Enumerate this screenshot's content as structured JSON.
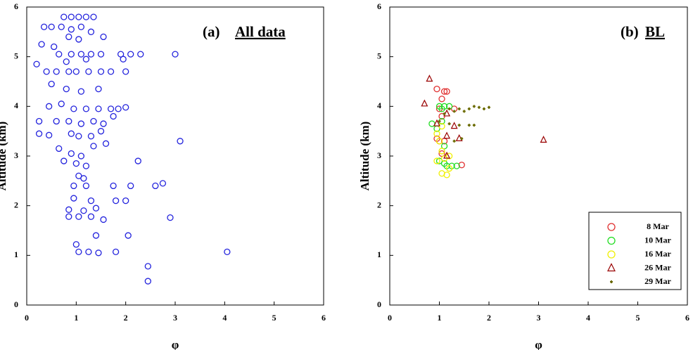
{
  "chart_data": [
    {
      "type": "scatter",
      "label": "(a)",
      "title": "All data",
      "x_label": "φ",
      "y_label": "Altitude (km)",
      "color": "#2222dd",
      "marker": "circle",
      "x": [
        0.75,
        0.9,
        1.05,
        1.2,
        1.35,
        0.35,
        0.5,
        0.7,
        0.9,
        1.1,
        1.3,
        0.85,
        1.05,
        1.55,
        0.3,
        0.55,
        0.65,
        0.9,
        1.1,
        1.3,
        1.5,
        1.9,
        2.1,
        2.3,
        3.0,
        0.2,
        0.8,
        1.2,
        1.95,
        0.4,
        0.6,
        0.85,
        1.0,
        1.25,
        1.5,
        1.7,
        2.0,
        0.5,
        0.8,
        1.1,
        1.45,
        0.45,
        0.7,
        0.95,
        1.2,
        1.45,
        1.7,
        1.85,
        2.0,
        0.25,
        0.6,
        0.85,
        1.1,
        1.35,
        1.55,
        1.75,
        0.25,
        0.45,
        0.9,
        1.05,
        1.3,
        1.5,
        3.1,
        0.65,
        0.9,
        1.1,
        1.35,
        1.6,
        0.75,
        1.0,
        1.2,
        2.25,
        1.05,
        1.15,
        0.95,
        1.2,
        1.75,
        2.1,
        2.6,
        2.75,
        0.95,
        1.3,
        1.8,
        2.0,
        0.85,
        1.15,
        1.4,
        0.85,
        1.05,
        1.3,
        1.55,
        2.9,
        1.4,
        2.05,
        1.0,
        1.05,
        1.25,
        1.45,
        1.8,
        4.05,
        2.45,
        2.45
      ],
      "values": [
        5.8,
        5.8,
        5.8,
        5.8,
        5.8,
        5.6,
        5.6,
        5.6,
        5.55,
        5.6,
        5.5,
        5.4,
        5.35,
        5.4,
        5.25,
        5.2,
        5.05,
        5.05,
        5.05,
        5.05,
        5.05,
        5.05,
        5.05,
        5.05,
        5.05,
        4.85,
        4.9,
        4.95,
        4.95,
        4.7,
        4.7,
        4.7,
        4.7,
        4.7,
        4.7,
        4.7,
        4.7,
        4.45,
        4.35,
        4.3,
        4.35,
        4.0,
        4.05,
        3.95,
        3.95,
        3.95,
        3.95,
        3.95,
        3.98,
        3.7,
        3.7,
        3.7,
        3.65,
        3.7,
        3.65,
        3.8,
        3.45,
        3.42,
        3.45,
        3.4,
        3.4,
        3.5,
        3.3,
        3.15,
        3.05,
        3.0,
        3.2,
        3.25,
        2.9,
        2.85,
        2.8,
        2.9,
        2.6,
        2.55,
        2.4,
        2.4,
        2.4,
        2.4,
        2.4,
        2.45,
        2.15,
        2.1,
        2.1,
        2.1,
        1.92,
        1.9,
        1.95,
        1.78,
        1.78,
        1.78,
        1.72,
        1.76,
        1.4,
        1.4,
        1.22,
        1.07,
        1.07,
        1.05,
        1.07,
        1.07,
        0.78,
        0.48
      ],
      "xlim": [
        0,
        6
      ],
      "ylim": [
        0,
        6
      ],
      "xticks": [
        0,
        1,
        2,
        3,
        4,
        5,
        6
      ],
      "yticks": [
        0,
        1,
        2,
        3,
        4,
        5,
        6
      ]
    },
    {
      "type": "scatter",
      "label": "(b)",
      "title": "BL",
      "x_label": "φ",
      "y_label": "Altitude (km)",
      "series": [
        {
          "name": "8 Mar",
          "color": "#e03030",
          "marker": "circle",
          "x": [
            0.95,
            1.05,
            1.1,
            1.15,
            1.0,
            1.05,
            0.95,
            1.0,
            1.1,
            1.45,
            1.05,
            1.3
          ],
          "values": [
            4.35,
            4.15,
            4.3,
            4.3,
            3.95,
            3.8,
            3.35,
            3.3,
            3.3,
            2.82,
            3.05,
            3.95
          ]
        },
        {
          "name": "10 Mar",
          "color": "#22dd22",
          "marker": "circle",
          "x": [
            0.85,
            1.0,
            1.05,
            1.1,
            1.2,
            0.95,
            1.05,
            1.1,
            1.15,
            1.25,
            1.35,
            1.0,
            1.1
          ],
          "values": [
            3.65,
            4.0,
            3.95,
            4.0,
            4.0,
            3.55,
            3.7,
            3.2,
            2.8,
            2.8,
            2.8,
            2.9,
            2.85
          ]
        },
        {
          "name": "16 Mar",
          "color": "#f0f000",
          "marker": "circle",
          "x": [
            0.95,
            1.0,
            1.05,
            1.1,
            0.95,
            1.05,
            1.15,
            1.2,
            1.2,
            1.05
          ],
          "values": [
            3.45,
            3.3,
            3.1,
            2.95,
            2.9,
            2.65,
            2.62,
            2.75,
            3.0,
            3.6
          ]
        },
        {
          "name": "26 Mar",
          "color": "#990000",
          "marker": "triangle",
          "x": [
            0.8,
            0.7,
            1.15,
            0.95,
            1.15,
            1.3,
            1.4,
            1.15,
            3.1
          ],
          "values": [
            4.55,
            4.05,
            3.85,
            3.65,
            3.4,
            3.6,
            3.35,
            3.0,
            3.32
          ]
        },
        {
          "name": "29 Mar",
          "color": "#6b6b00",
          "marker": "plus",
          "x": [
            1.2,
            1.4,
            1.6,
            1.8,
            2.0,
            1.5,
            1.3,
            1.1,
            1.2,
            1.4,
            1.6,
            1.7,
            1.3,
            1.45,
            1.9,
            1.7,
            1.0
          ],
          "values": [
            3.95,
            3.95,
            3.95,
            3.98,
            3.98,
            3.9,
            3.9,
            3.85,
            3.65,
            3.62,
            3.62,
            3.62,
            3.3,
            3.35,
            3.95,
            4.0,
            3.7
          ]
        }
      ],
      "xlim": [
        0,
        6
      ],
      "ylim": [
        0,
        6
      ],
      "xticks": [
        0,
        1,
        2,
        3,
        4,
        5,
        6
      ],
      "yticks": [
        0,
        1,
        2,
        3,
        4,
        5,
        6
      ]
    }
  ]
}
